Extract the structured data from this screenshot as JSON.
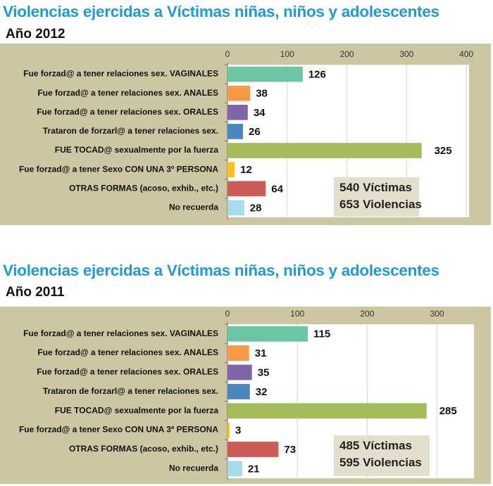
{
  "chart_data": [
    {
      "type": "bar",
      "orientation": "horizontal",
      "title": "Violencias ejercidas a Víctimas niñas, niños y adolescentes",
      "subtitle": "Año 2012",
      "categories": [
        "Fue forzad@ a tener relaciones sex. VAGINALES",
        "Fue forzad@ a tener relaciones sex. ANALES",
        "Fue forzad@ a tener relaciones sex. ORALES",
        "Trataron de forzarl@ a tener relaciones sex.",
        "FUE TOCAD@ sexualmente por la fuerza",
        "Fue forzad@ a tener Sexo CON UNA 3º PERSONA",
        "OTRAS FORMAS (acoso, exhib., etc.)",
        "No recuerda"
      ],
      "values": [
        126,
        38,
        34,
        26,
        325,
        12,
        64,
        28
      ],
      "xlim": [
        0,
        400
      ],
      "ticks": [
        0,
        100,
        200,
        300,
        400
      ],
      "grid": true,
      "annotation": [
        "540 Víctimas",
        "653 Violencias"
      ]
    },
    {
      "type": "bar",
      "orientation": "horizontal",
      "title": "Violencias ejercidas a Víctimas niñas, niños y adolescentes",
      "subtitle": "Año 2011",
      "categories": [
        "Fue forzad@ a tener relaciones sex. VAGINALES",
        "Fue forzad@ a tener relaciones sex. ANALES",
        "Fue forzad@ a tener relaciones sex. ORALES",
        "Trataron de forzarl@ a tener relaciones sex.",
        "FUE TOCAD@ sexualmente por la fuerza",
        "Fue forzad@ a tener Sexo CON UNA 3º PERSONA",
        "OTRAS FORMAS (acoso, exhib., etc.)",
        "No recuerda"
      ],
      "values": [
        115,
        31,
        35,
        32,
        285,
        3,
        73,
        21
      ],
      "xlim": [
        0,
        350
      ],
      "ticks": [
        0,
        100,
        200,
        300
      ],
      "grid": true,
      "annotation": [
        "485 Víctimas",
        "595 Violencias"
      ]
    }
  ],
  "colors": [
    "#6cc5a3",
    "#f79a45",
    "#8066a8",
    "#4a86c0",
    "#a2bd5a",
    "#fbc321",
    "#cd5c57",
    "#a7dbec"
  ],
  "panel_color": "#cdc6a3",
  "stat_box_color": "#e3dfcc"
}
